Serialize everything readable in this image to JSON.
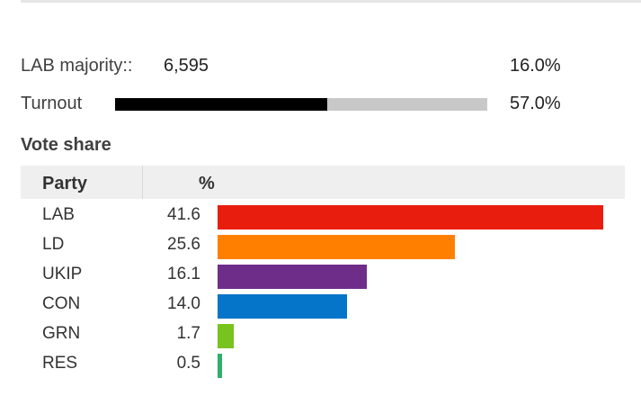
{
  "majority": {
    "label": "LAB majority::",
    "value": "6,595",
    "percent": "16.0%"
  },
  "turnout": {
    "label": "Turnout",
    "percent": "57.0%",
    "fraction": 0.57
  },
  "vote_share": {
    "title": "Vote share",
    "header_party": "Party",
    "header_pct": "%",
    "max_value": 41.6,
    "rows": [
      {
        "party": "LAB",
        "share": "41.6",
        "value": 41.6,
        "color": "#e91d0e"
      },
      {
        "party": "LD",
        "share": "25.6",
        "value": 25.6,
        "color": "#ff8000"
      },
      {
        "party": "UKIP",
        "share": "16.1",
        "value": 16.1,
        "color": "#6f2d8a"
      },
      {
        "party": "CON",
        "share": "14.0",
        "value": 14.0,
        "color": "#0575c9"
      },
      {
        "party": "GRN",
        "share": "1.7",
        "value": 1.7,
        "color": "#78c31e"
      },
      {
        "party": "RES",
        "share": "0.5",
        "value": 0.5,
        "color": "#2eb06b"
      }
    ]
  }
}
